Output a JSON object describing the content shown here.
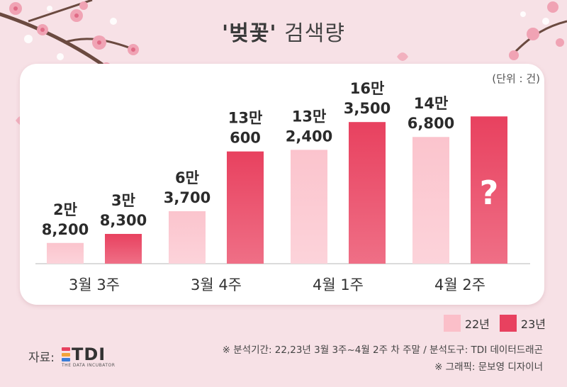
{
  "title": {
    "bold": "'벚꽃'",
    "rest": " 검색량"
  },
  "unit": "(단위 : 건)",
  "chart_data": {
    "type": "bar",
    "categories": [
      "3월 3주",
      "3월 4주",
      "4월 1주",
      "4월 2주"
    ],
    "series": [
      {
        "name": "22년",
        "values": [
          28200,
          63700,
          132400,
          146800
        ],
        "labels": [
          "2만\n8,200",
          "6만\n3,700",
          "13만\n2,400",
          "14만\n6,800"
        ]
      },
      {
        "name": "23년",
        "values": [
          38300,
          130600,
          163500,
          null
        ],
        "labels": [
          "3만\n8,300",
          "13만\n600",
          "16만\n3,500",
          ""
        ]
      }
    ],
    "placeholder_label": "?",
    "colors": {
      "22년": "#fbbfc9",
      "23년": "#e8415f"
    },
    "ylim": [
      0,
      170000
    ],
    "legend_position": "bottom-right"
  },
  "legend": [
    {
      "label": "22년",
      "color": "#fbbfc9"
    },
    {
      "label": "23년",
      "color": "#e8415f"
    }
  ],
  "source": {
    "label": "자료:",
    "logo_text": "TDI",
    "logo_sub": "THE DATA INCUBATOR"
  },
  "notes": [
    "※ 분석기간: 22,23년 3월 3주~4월 2주 차 주말 / 분석도구: TDI 데이터드래곤",
    "※ 그래픽: 문보영 디자이너"
  ]
}
